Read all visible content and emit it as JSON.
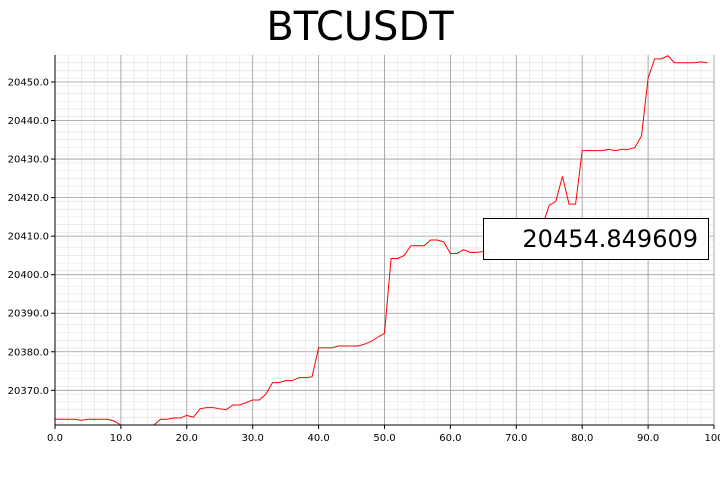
{
  "chart_data": {
    "type": "line",
    "title": "BTCUSDT",
    "xlabel": "",
    "ylabel": "",
    "xlim": [
      0,
      100
    ],
    "ylim": [
      20361,
      20457
    ],
    "x_ticks": [
      0,
      10,
      20,
      30,
      40,
      50,
      60,
      70,
      80,
      90,
      100
    ],
    "x_tick_labels": [
      "0.0",
      "10.0",
      "20.0",
      "30.0",
      "40.0",
      "50.0",
      "60.0",
      "70.0",
      "80.0",
      "90.0",
      "100"
    ],
    "y_ticks": [
      20370,
      20380,
      20390,
      20400,
      20410,
      20420,
      20430,
      20440,
      20450
    ],
    "y_tick_labels": [
      "20370.0",
      "20380.0",
      "20390.0",
      "20400.0",
      "20410.0",
      "20420.0",
      "20430.0",
      "20440.0",
      "20450.0"
    ],
    "grid": true,
    "series": [
      {
        "name": "BTCUSDT",
        "color": "#ff0000",
        "x": [
          0,
          1,
          2,
          3,
          4,
          5,
          6,
          7,
          8,
          9,
          10,
          11,
          12,
          13,
          14,
          15,
          16,
          17,
          18,
          19,
          20,
          21,
          22,
          23,
          24,
          25,
          26,
          27,
          28,
          29,
          30,
          31,
          32,
          33,
          34,
          35,
          36,
          37,
          38,
          39,
          40,
          41,
          42,
          43,
          44,
          45,
          46,
          47,
          48,
          49,
          50,
          51,
          52,
          53,
          54,
          55,
          56,
          57,
          58,
          59,
          60,
          61,
          62,
          63,
          64,
          65,
          66,
          67,
          68,
          69,
          70,
          71,
          72,
          73,
          74,
          75,
          76,
          77,
          78,
          79,
          80,
          81,
          82,
          83,
          84,
          85,
          86,
          87,
          88,
          89,
          90,
          91,
          92,
          93,
          94,
          95,
          96,
          97,
          98,
          99
        ],
        "y": [
          20362.5,
          20362.5,
          20362.5,
          20362.5,
          20362.2,
          20362.5,
          20362.5,
          20362.5,
          20362.5,
          20362.0,
          20361.0,
          20361.0,
          20361.0,
          20361.0,
          20361.0,
          20361.0,
          20362.5,
          20362.5,
          20362.8,
          20362.8,
          20363.5,
          20363.0,
          20365.2,
          20365.5,
          20365.5,
          20365.2,
          20365.0,
          20366.2,
          20366.2,
          20366.8,
          20367.5,
          20367.5,
          20369.0,
          20372.0,
          20372.0,
          20372.5,
          20372.5,
          20373.3,
          20373.3,
          20373.5,
          20381.0,
          20381.0,
          20381.0,
          20381.5,
          20381.5,
          20381.5,
          20381.5,
          20382.0,
          20382.7,
          20383.8,
          20384.8,
          20404.2,
          20404.2,
          20405.0,
          20407.5,
          20407.5,
          20407.5,
          20409.0,
          20409.0,
          20408.5,
          20405.5,
          20405.5,
          20406.5,
          20405.8,
          20405.8,
          20406.0,
          20406.5,
          20406.5,
          20407.0,
          20407.0,
          20407.2,
          20408.0,
          20409.0,
          20410.0,
          20413.0,
          20418.0,
          20419.0,
          20425.5,
          20418.3,
          20418.3,
          20432.2,
          20432.2,
          20432.2,
          20432.2,
          20432.5,
          20432.2,
          20432.5,
          20432.5,
          20433.0,
          20436.0,
          20451.0,
          20456.0,
          20456.0,
          20456.8,
          20455.0,
          20455.0,
          20455.0,
          20455.0,
          20455.2,
          20455.0
        ]
      }
    ],
    "last_value_label": "20454.849609"
  }
}
